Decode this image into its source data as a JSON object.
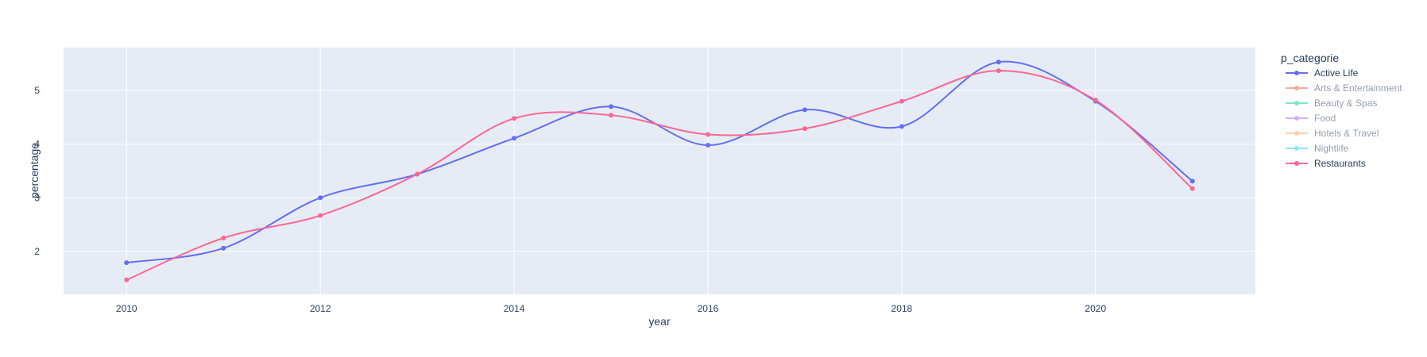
{
  "chart_data": {
    "type": "line",
    "xlabel": "year",
    "ylabel": "percentage",
    "x": [
      2010,
      2011,
      2012,
      2013,
      2014,
      2015,
      2016,
      2017,
      2018,
      2019,
      2020,
      2021
    ],
    "xlim": [
      2009.35,
      2021.65
    ],
    "ylim": [
      1.2,
      5.8
    ],
    "x_ticks": [
      2010,
      2012,
      2014,
      2016,
      2018,
      2020
    ],
    "y_ticks": [
      2,
      3,
      4,
      5
    ],
    "grid": true,
    "line_shape": "spline",
    "legend": {
      "title": "p_categorie",
      "placement": "right",
      "entries": [
        {
          "name": "Active Life",
          "color": "#636efa",
          "visible": true
        },
        {
          "name": "Arts & Entertainment",
          "color": "#EF553B",
          "visible": false
        },
        {
          "name": "Beauty & Spas",
          "color": "#00cc96",
          "visible": false
        },
        {
          "name": "Food",
          "color": "#ab63fa",
          "visible": false
        },
        {
          "name": "Hotels & Travel",
          "color": "#FFA15A",
          "visible": false
        },
        {
          "name": "Nightlife",
          "color": "#19d3f3",
          "visible": false
        },
        {
          "name": "Restaurants",
          "color": "#FF6692",
          "visible": true
        }
      ]
    },
    "series": [
      {
        "name": "Active Life",
        "color": "#636efa",
        "values": [
          1.79,
          2.06,
          3.0,
          3.44,
          4.11,
          4.7,
          3.98,
          4.64,
          4.33,
          5.53,
          4.8,
          3.31
        ]
      },
      {
        "name": "Restaurants",
        "color": "#FF6692",
        "values": [
          1.47,
          2.25,
          2.67,
          3.44,
          4.48,
          4.54,
          4.18,
          4.29,
          4.8,
          5.37,
          4.82,
          3.17
        ]
      }
    ],
    "colors": {
      "plot_background": "#e5ecf6",
      "grid": "#ffffff",
      "text": "#2a3f5f"
    }
  }
}
